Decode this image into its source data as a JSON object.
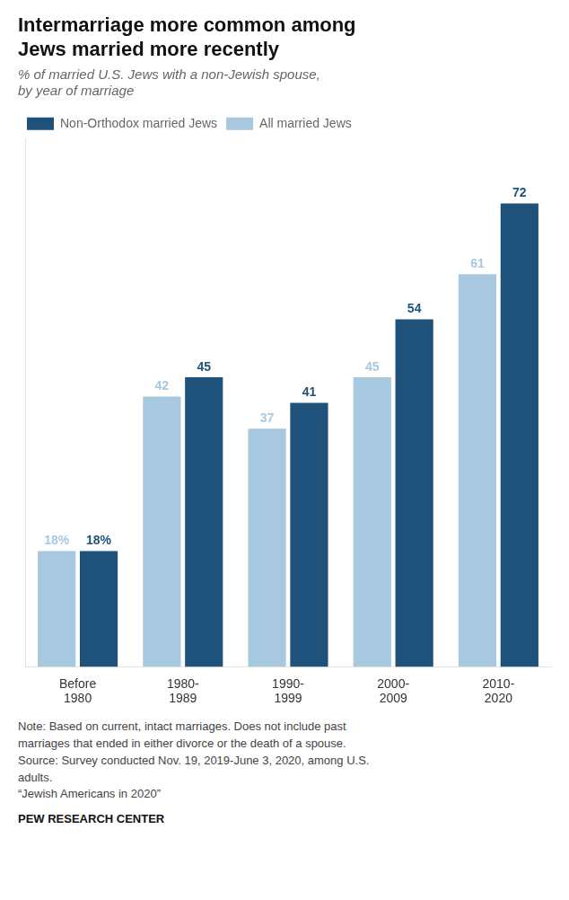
{
  "chart_data": {
    "type": "bar",
    "title": [
      "Intermarriage more common among",
      "Jews married more recently"
    ],
    "subtitle": "% of married U.S. Jews with a non-Jewish spouse,\nby year of marriage",
    "categories": [
      "Before\n1980",
      "1980-\n1989",
      "1990-\n1999",
      "2000-\n2009",
      "2010-\n2020"
    ],
    "series": [
      {
        "name": "All married Jews",
        "color": "#a8c8e0",
        "values": [
          18,
          42,
          37,
          45,
          61
        ],
        "value_labels": [
          "18%",
          "42",
          "37",
          "45",
          "61"
        ]
      },
      {
        "name": "Non-Orthodox married Jews",
        "color": "#1f527a",
        "values": [
          18,
          45,
          41,
          54,
          72
        ],
        "value_labels": [
          "18%",
          "45",
          "41",
          "54",
          "72"
        ]
      }
    ],
    "ylim": [
      0,
      82
    ],
    "grid": false,
    "legend": "top",
    "data_labels": true,
    "tick_labels": "x",
    "notes": [
      "Note: Based on current, intact marriages. Does not include past",
      "marriages that ended in either divorce or the death of a spouse.",
      "Source: Survey conducted Nov. 19, 2019-June 3, 2020, among U.S.",
      "adults.",
      "“Jewish Americans in 2020”"
    ],
    "source": "PEW RESEARCH CENTER"
  }
}
